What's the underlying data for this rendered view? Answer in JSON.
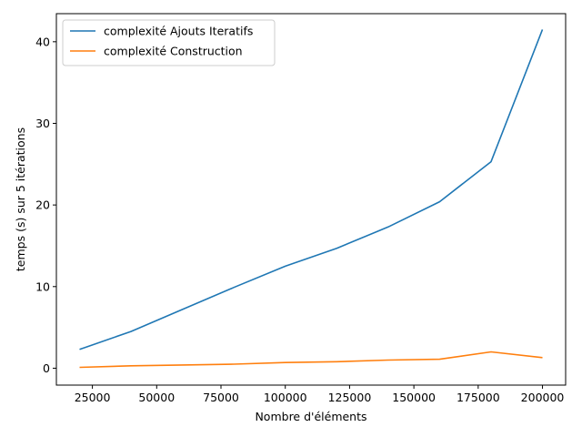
{
  "chart_data": {
    "type": "line",
    "xlabel": "Nombre d'éléments",
    "ylabel": "temps (s) sur 5 itérations",
    "xlim": [
      11000,
      209000
    ],
    "ylim": [
      -2.07,
      43.44
    ],
    "xticks": [
      25000,
      50000,
      75000,
      100000,
      125000,
      150000,
      175000,
      200000
    ],
    "yticks": [
      0,
      10,
      20,
      30,
      40
    ],
    "grid": false,
    "legend_position": "top-left",
    "x": [
      20000,
      40000,
      60000,
      80000,
      100000,
      120000,
      140000,
      160000,
      180000,
      200000
    ],
    "series": [
      {
        "name": "complexité Ajouts Iteratifs",
        "color": "#1f77b4",
        "values": [
          2.3,
          4.5,
          7.2,
          9.9,
          12.5,
          14.7,
          17.3,
          20.4,
          25.3,
          41.5
        ]
      },
      {
        "name": "complexité Construction",
        "color": "#ff7f0e",
        "values": [
          0.1,
          0.3,
          0.4,
          0.5,
          0.7,
          0.8,
          1.0,
          1.1,
          2.0,
          1.3
        ]
      }
    ]
  }
}
